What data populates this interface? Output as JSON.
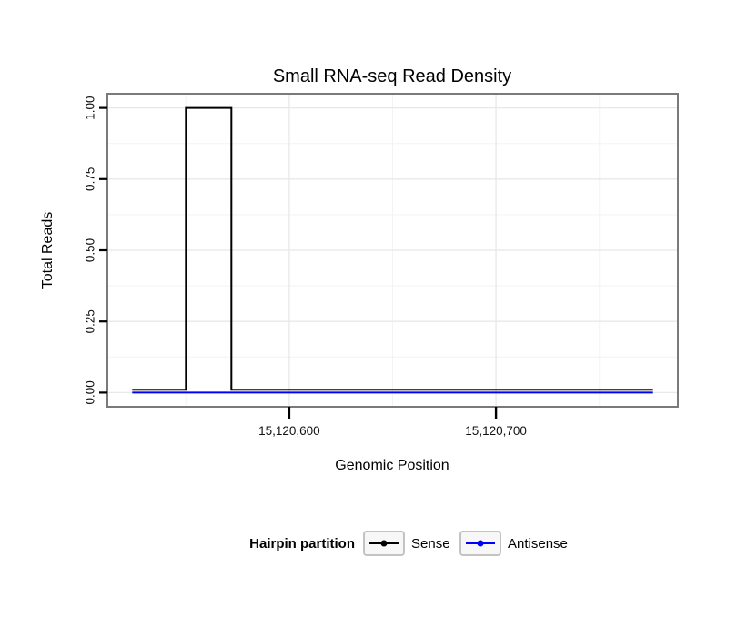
{
  "chart_data": {
    "type": "line",
    "title": "Small RNA-seq Read Density",
    "xlabel": "Genomic Position",
    "ylabel": "Total Reads",
    "xlim": [
      15120512,
      15120788
    ],
    "ylim": [
      -0.05,
      1.05
    ],
    "grid": true,
    "x_ticks": [
      {
        "value": 15120600,
        "label": "15,120,600"
      },
      {
        "value": 15120700,
        "label": "15,120,700"
      }
    ],
    "y_ticks": [
      {
        "value": 0.0,
        "label": "0.00"
      },
      {
        "value": 0.25,
        "label": "0.25"
      },
      {
        "value": 0.5,
        "label": "0.50"
      },
      {
        "value": 0.75,
        "label": "0.75"
      },
      {
        "value": 1.0,
        "label": "1.00"
      }
    ],
    "series": [
      {
        "name": "Antisense",
        "color": "#0000ff",
        "points": [
          [
            15120524,
            0
          ],
          [
            15120776,
            0
          ]
        ]
      },
      {
        "name": "Sense",
        "color": "#000000",
        "points": [
          [
            15120524,
            0.01
          ],
          [
            15120550,
            0.01
          ],
          [
            15120550,
            1.0
          ],
          [
            15120572,
            1.0
          ],
          [
            15120572,
            0.01
          ],
          [
            15120776,
            0.01
          ]
        ]
      }
    ],
    "legend": {
      "title": "Hairpin partition",
      "position": "bottom",
      "entries": [
        {
          "label": "Sense",
          "color": "#000000"
        },
        {
          "label": "Antisense",
          "color": "#0000ff"
        }
      ]
    },
    "panel": {
      "border_color": "#7a7a7a",
      "grid_major_color": "#e8e8e8",
      "grid_minor_color": "#f3f3f3",
      "background": "#ffffff"
    }
  }
}
